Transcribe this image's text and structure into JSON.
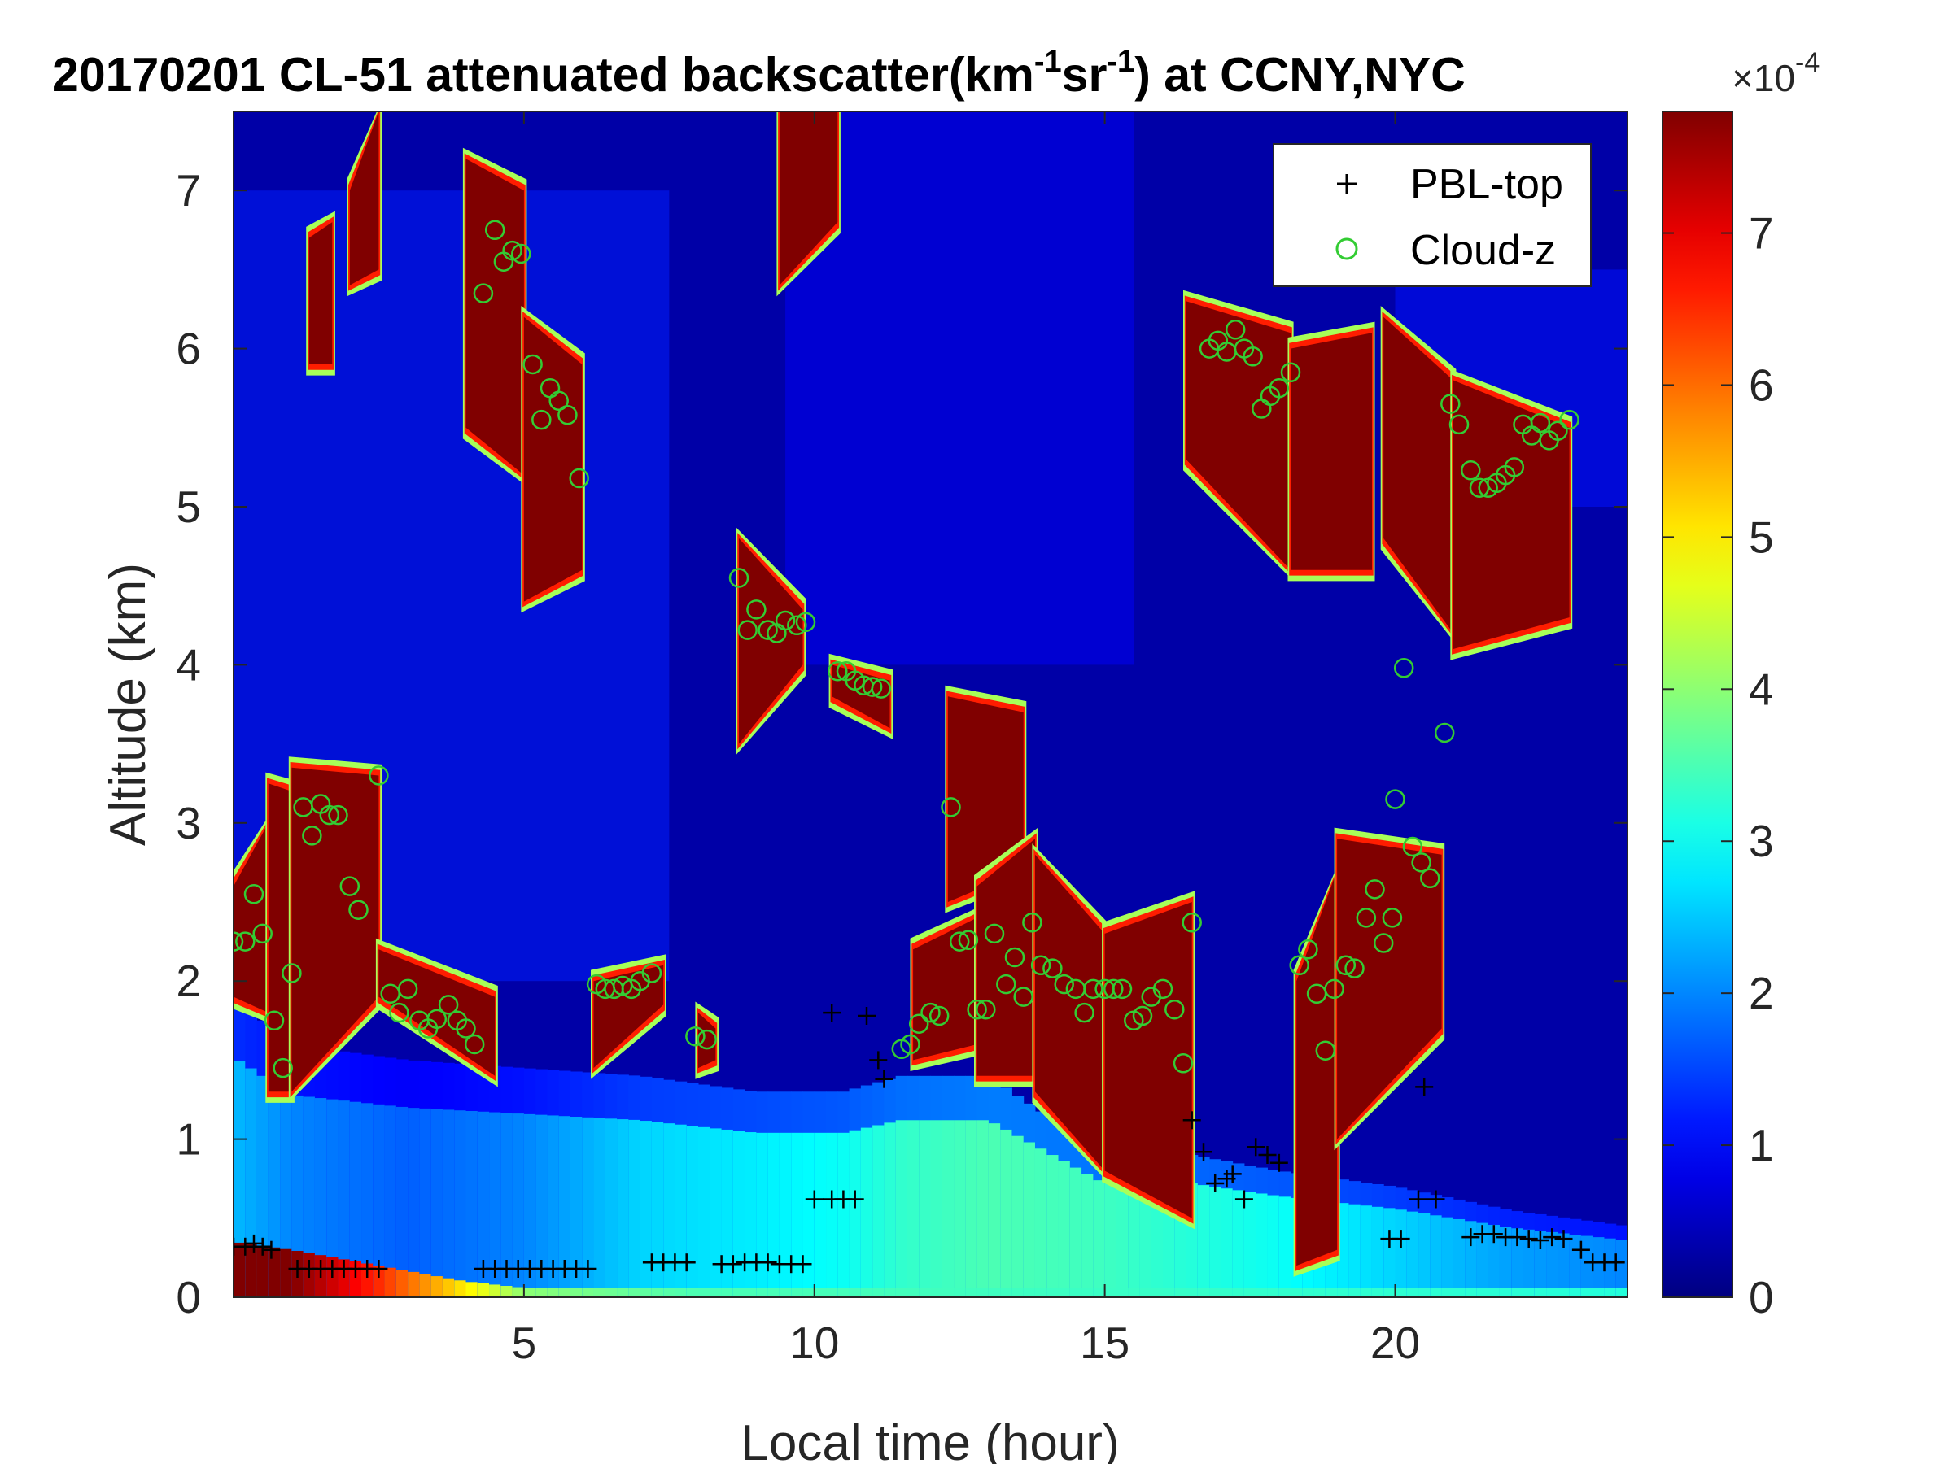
{
  "chart_data": {
    "type": "heatmap",
    "title": {
      "prefix": "20170201  CL-51 attenuated backscatter(km",
      "sup1": "-1",
      "mid": "sr",
      "sup2": "-1",
      "suffix": ") at CCNY,NYC"
    },
    "xlabel": "Local time (hour)",
    "ylabel": "Altitude (km)",
    "xlim": [
      0,
      24
    ],
    "ylim": [
      0,
      7.5
    ],
    "xticks": [
      5,
      10,
      15,
      20
    ],
    "yticks": [
      0,
      1,
      2,
      3,
      4,
      5,
      6,
      7
    ],
    "colorbar": {
      "colormap": "jet",
      "clim": [
        0,
        7.8
      ],
      "ticks": [
        0,
        1,
        2,
        3,
        4,
        5,
        6,
        7
      ],
      "exponent_base": "×10",
      "exponent_power": "-4"
    },
    "background_level": 0.3,
    "boundary_layer": [
      {
        "t": 0,
        "top": 1.9,
        "level": 2.4
      },
      {
        "t": 1,
        "top": 1.6,
        "level": 2.0
      },
      {
        "t": 3,
        "top": 1.5,
        "level": 1.7
      },
      {
        "t": 5,
        "top": 1.45,
        "level": 2.0
      },
      {
        "t": 7,
        "top": 1.4,
        "level": 2.6
      },
      {
        "t": 9,
        "top": 1.3,
        "level": 2.8
      },
      {
        "t": 10.5,
        "top": 1.3,
        "level": 3.0
      },
      {
        "t": 11.5,
        "top": 1.4,
        "level": 3.3
      },
      {
        "t": 13,
        "top": 1.4,
        "level": 3.5
      },
      {
        "t": 15,
        "top": 0.9,
        "level": 3.4
      },
      {
        "t": 16.5,
        "top": 0.9,
        "level": 3.2
      },
      {
        "t": 18,
        "top": 0.8,
        "level": 3.0
      },
      {
        "t": 20,
        "top": 0.7,
        "level": 2.6
      },
      {
        "t": 22,
        "top": 0.55,
        "level": 2.2
      },
      {
        "t": 24,
        "top": 0.45,
        "level": 2.0
      }
    ],
    "surface_layer": [
      {
        "t": 0,
        "top": 0.35,
        "level": 7.8
      },
      {
        "t": 1,
        "top": 0.3,
        "level": 7.8
      },
      {
        "t": 2.5,
        "top": 0.2,
        "level": 6.5
      },
      {
        "t": 4,
        "top": 0.1,
        "level": 5.0
      },
      {
        "t": 5,
        "top": 0.06,
        "level": 4.0
      },
      {
        "t": 8,
        "top": 0.06,
        "level": 3.5
      },
      {
        "t": 24,
        "top": 0.06,
        "level": 3.2
      }
    ],
    "aerosol_haze": [
      {
        "t0": 0,
        "t1": 7.5,
        "z0": 2.0,
        "z1": 7.0,
        "level": 1.2
      },
      {
        "t0": 9.5,
        "t1": 15.5,
        "z0": 4.0,
        "z1": 7.5,
        "level": 0.9
      },
      {
        "t0": 20,
        "t1": 24,
        "z0": 5.0,
        "z1": 6.5,
        "level": 1.1
      }
    ],
    "cloud_layers": [
      {
        "t0": 0.0,
        "t1": 0.6,
        "b0": 1.9,
        "b1": 1.8,
        "top0": 2.6,
        "top1": 3.0
      },
      {
        "t0": 0.6,
        "t1": 1.0,
        "b0": 1.3,
        "b1": 1.3,
        "top0": 3.25,
        "top1": 3.2
      },
      {
        "t0": 1.0,
        "t1": 2.5,
        "b0": 1.3,
        "b1": 1.9,
        "top0": 3.35,
        "top1": 3.3
      },
      {
        "t0": 2.5,
        "t1": 4.5,
        "b0": 1.9,
        "b1": 1.4,
        "top0": 2.2,
        "top1": 1.9
      },
      {
        "t0": 1.3,
        "t1": 1.7,
        "b0": 5.9,
        "b1": 5.9,
        "top0": 6.7,
        "top1": 6.8
      },
      {
        "t0": 2.0,
        "t1": 2.5,
        "b0": 6.4,
        "b1": 6.5,
        "top0": 7.0,
        "top1": 7.5
      },
      {
        "t0": 4.0,
        "t1": 5.0,
        "b0": 5.5,
        "b1": 5.2,
        "top0": 7.2,
        "top1": 7.0
      },
      {
        "t0": 5.0,
        "t1": 6.0,
        "b0": 4.4,
        "b1": 4.6,
        "top0": 6.2,
        "top1": 5.9
      },
      {
        "t0": 6.2,
        "t1": 7.4,
        "b0": 1.45,
        "b1": 1.85,
        "top0": 2.0,
        "top1": 2.1
      },
      {
        "t0": 8.0,
        "t1": 8.3,
        "b0": 1.45,
        "b1": 1.5,
        "top0": 1.8,
        "top1": 1.7
      },
      {
        "t0": 8.7,
        "t1": 9.8,
        "b0": 3.5,
        "b1": 4.0,
        "top0": 4.8,
        "top1": 4.35
      },
      {
        "t0": 9.4,
        "t1": 10.4,
        "b0": 6.4,
        "b1": 6.8,
        "top0": 7.5,
        "top1": 7.5
      },
      {
        "t0": 10.3,
        "t1": 11.3,
        "b0": 3.8,
        "b1": 3.6,
        "top0": 4.0,
        "top1": 3.9
      },
      {
        "t0": 11.7,
        "t1": 12.8,
        "b0": 1.5,
        "b1": 1.6,
        "top0": 2.2,
        "top1": 2.4
      },
      {
        "t0": 12.3,
        "t1": 13.6,
        "b0": 2.5,
        "b1": 2.7,
        "top0": 3.8,
        "top1": 3.7
      },
      {
        "t0": 12.8,
        "t1": 13.8,
        "b0": 1.4,
        "b1": 1.4,
        "top0": 2.6,
        "top1": 2.9
      },
      {
        "t0": 13.8,
        "t1": 15.0,
        "b0": 1.3,
        "b1": 0.8,
        "top0": 2.8,
        "top1": 2.3
      },
      {
        "t0": 15.0,
        "t1": 16.5,
        "b0": 0.8,
        "b1": 0.5,
        "top0": 2.3,
        "top1": 2.5
      },
      {
        "t0": 16.4,
        "t1": 18.2,
        "b0": 5.3,
        "b1": 4.6,
        "top0": 6.3,
        "top1": 6.1
      },
      {
        "t0": 18.2,
        "t1": 19.6,
        "b0": 4.6,
        "b1": 4.6,
        "top0": 6.0,
        "top1": 6.1
      },
      {
        "t0": 19.8,
        "t1": 21.0,
        "b0": 4.8,
        "b1": 4.2,
        "top0": 6.2,
        "top1": 5.8
      },
      {
        "t0": 21.0,
        "t1": 23.0,
        "b0": 4.1,
        "b1": 4.3,
        "top0": 5.8,
        "top1": 5.5
      },
      {
        "t0": 18.3,
        "t1": 19.0,
        "b0": 0.2,
        "b1": 0.3,
        "top0": 2.0,
        "top1": 2.7
      },
      {
        "t0": 19.0,
        "t1": 20.8,
        "b0": 1.0,
        "b1": 1.7,
        "top0": 2.9,
        "top1": 2.8
      }
    ],
    "series": [
      {
        "name": "PBL-top",
        "marker": "+",
        "color": "#000000",
        "points": [
          [
            0.0,
            0.32
          ],
          [
            0.2,
            0.32
          ],
          [
            0.35,
            0.34
          ],
          [
            0.5,
            0.32
          ],
          [
            0.65,
            0.3
          ],
          [
            1.1,
            0.18
          ],
          [
            1.3,
            0.18
          ],
          [
            1.5,
            0.18
          ],
          [
            1.7,
            0.18
          ],
          [
            1.9,
            0.18
          ],
          [
            2.1,
            0.18
          ],
          [
            2.3,
            0.18
          ],
          [
            2.5,
            0.18
          ],
          [
            4.3,
            0.18
          ],
          [
            4.5,
            0.18
          ],
          [
            4.7,
            0.18
          ],
          [
            4.9,
            0.18
          ],
          [
            5.1,
            0.18
          ],
          [
            5.3,
            0.18
          ],
          [
            5.5,
            0.18
          ],
          [
            5.7,
            0.18
          ],
          [
            5.9,
            0.18
          ],
          [
            6.1,
            0.18
          ],
          [
            7.2,
            0.22
          ],
          [
            7.4,
            0.22
          ],
          [
            7.6,
            0.22
          ],
          [
            7.8,
            0.22
          ],
          [
            8.4,
            0.21
          ],
          [
            8.6,
            0.21
          ],
          [
            8.8,
            0.22
          ],
          [
            9.0,
            0.22
          ],
          [
            9.2,
            0.22
          ],
          [
            9.4,
            0.21
          ],
          [
            9.6,
            0.21
          ],
          [
            9.8,
            0.21
          ],
          [
            10.0,
            0.62
          ],
          [
            10.3,
            0.62
          ],
          [
            10.5,
            0.62
          ],
          [
            10.7,
            0.62
          ],
          [
            10.3,
            1.8
          ],
          [
            10.9,
            1.78
          ],
          [
            11.1,
            1.5
          ],
          [
            11.2,
            1.38
          ],
          [
            16.5,
            1.12
          ],
          [
            16.7,
            0.92
          ],
          [
            16.9,
            0.72
          ],
          [
            17.1,
            0.75
          ],
          [
            17.2,
            0.78
          ],
          [
            17.4,
            0.62
          ],
          [
            17.6,
            0.95
          ],
          [
            17.8,
            0.9
          ],
          [
            18.0,
            0.85
          ],
          [
            19.9,
            0.37
          ],
          [
            20.1,
            0.37
          ],
          [
            20.4,
            0.62
          ],
          [
            20.7,
            0.62
          ],
          [
            20.5,
            1.33
          ],
          [
            21.3,
            0.38
          ],
          [
            21.5,
            0.4
          ],
          [
            21.7,
            0.4
          ],
          [
            21.9,
            0.38
          ],
          [
            22.1,
            0.38
          ],
          [
            22.3,
            0.37
          ],
          [
            22.5,
            0.36
          ],
          [
            22.7,
            0.38
          ],
          [
            22.9,
            0.37
          ],
          [
            23.2,
            0.3
          ],
          [
            23.4,
            0.22
          ],
          [
            23.6,
            0.22
          ],
          [
            23.8,
            0.22
          ]
        ]
      },
      {
        "name": "Cloud-z",
        "marker": "o",
        "color": "#33cc33",
        "points": [
          [
            0.0,
            2.25
          ],
          [
            0.2,
            2.25
          ],
          [
            0.35,
            2.55
          ],
          [
            0.5,
            2.3
          ],
          [
            0.7,
            1.75
          ],
          [
            0.85,
            1.45
          ],
          [
            1.0,
            2.05
          ],
          [
            1.2,
            3.1
          ],
          [
            1.35,
            2.92
          ],
          [
            1.5,
            3.12
          ],
          [
            1.65,
            3.05
          ],
          [
            1.8,
            3.05
          ],
          [
            2.0,
            2.6
          ],
          [
            2.15,
            2.45
          ],
          [
            2.5,
            3.3
          ],
          [
            2.7,
            1.92
          ],
          [
            2.85,
            1.8
          ],
          [
            3.0,
            1.95
          ],
          [
            3.2,
            1.75
          ],
          [
            3.35,
            1.7
          ],
          [
            3.5,
            1.76
          ],
          [
            3.7,
            1.85
          ],
          [
            3.85,
            1.75
          ],
          [
            4.0,
            1.7
          ],
          [
            4.15,
            1.6
          ],
          [
            4.3,
            6.35
          ],
          [
            4.5,
            6.75
          ],
          [
            4.65,
            6.55
          ],
          [
            4.8,
            6.62
          ],
          [
            4.95,
            6.6
          ],
          [
            5.15,
            5.9
          ],
          [
            5.3,
            5.55
          ],
          [
            5.45,
            5.75
          ],
          [
            5.6,
            5.67
          ],
          [
            5.75,
            5.58
          ],
          [
            5.95,
            5.18
          ],
          [
            6.25,
            1.98
          ],
          [
            6.4,
            1.95
          ],
          [
            6.55,
            1.95
          ],
          [
            6.7,
            1.97
          ],
          [
            6.85,
            1.95
          ],
          [
            7.0,
            2.0
          ],
          [
            7.2,
            2.05
          ],
          [
            7.95,
            1.65
          ],
          [
            8.15,
            1.63
          ],
          [
            8.7,
            4.55
          ],
          [
            8.85,
            4.22
          ],
          [
            9.0,
            4.35
          ],
          [
            9.2,
            4.22
          ],
          [
            9.35,
            4.2
          ],
          [
            9.5,
            4.28
          ],
          [
            9.7,
            4.25
          ],
          [
            9.85,
            4.27
          ],
          [
            10.4,
            3.96
          ],
          [
            10.55,
            3.96
          ],
          [
            10.7,
            3.9
          ],
          [
            10.85,
            3.87
          ],
          [
            11.0,
            3.86
          ],
          [
            11.15,
            3.85
          ],
          [
            11.5,
            1.57
          ],
          [
            11.65,
            1.6
          ],
          [
            11.8,
            1.73
          ],
          [
            12.0,
            1.8
          ],
          [
            12.15,
            1.78
          ],
          [
            12.35,
            3.1
          ],
          [
            12.5,
            2.25
          ],
          [
            12.65,
            2.26
          ],
          [
            12.8,
            1.82
          ],
          [
            12.95,
            1.82
          ],
          [
            13.1,
            2.3
          ],
          [
            13.3,
            1.98
          ],
          [
            13.45,
            2.15
          ],
          [
            13.6,
            1.9
          ],
          [
            13.75,
            2.37
          ],
          [
            13.9,
            2.1
          ],
          [
            14.1,
            2.08
          ],
          [
            14.3,
            1.98
          ],
          [
            14.5,
            1.95
          ],
          [
            14.65,
            1.8
          ],
          [
            14.8,
            1.95
          ],
          [
            15.0,
            1.95
          ],
          [
            15.15,
            1.95
          ],
          [
            15.3,
            1.95
          ],
          [
            15.5,
            1.75
          ],
          [
            15.65,
            1.78
          ],
          [
            15.8,
            1.9
          ],
          [
            16.0,
            1.95
          ],
          [
            16.2,
            1.82
          ],
          [
            16.35,
            1.48
          ],
          [
            16.5,
            2.37
          ],
          [
            16.8,
            6.0
          ],
          [
            16.95,
            6.05
          ],
          [
            17.1,
            5.98
          ],
          [
            17.25,
            6.12
          ],
          [
            17.4,
            6.0
          ],
          [
            17.55,
            5.95
          ],
          [
            17.7,
            5.62
          ],
          [
            17.85,
            5.7
          ],
          [
            18.0,
            5.75
          ],
          [
            18.2,
            5.85
          ],
          [
            18.35,
            2.1
          ],
          [
            18.5,
            2.2
          ],
          [
            18.65,
            1.92
          ],
          [
            18.8,
            1.56
          ],
          [
            18.95,
            1.95
          ],
          [
            19.15,
            2.1
          ],
          [
            19.3,
            2.08
          ],
          [
            19.5,
            2.4
          ],
          [
            19.65,
            2.58
          ],
          [
            19.8,
            2.24
          ],
          [
            19.95,
            2.4
          ],
          [
            20.0,
            3.15
          ],
          [
            20.15,
            3.98
          ],
          [
            20.3,
            2.85
          ],
          [
            20.45,
            2.75
          ],
          [
            20.6,
            2.65
          ],
          [
            20.85,
            3.57
          ],
          [
            20.95,
            5.65
          ],
          [
            21.1,
            5.52
          ],
          [
            21.3,
            5.23
          ],
          [
            21.45,
            5.12
          ],
          [
            21.6,
            5.12
          ],
          [
            21.75,
            5.15
          ],
          [
            21.9,
            5.2
          ],
          [
            22.05,
            5.25
          ],
          [
            22.2,
            5.52
          ],
          [
            22.35,
            5.45
          ],
          [
            22.5,
            5.53
          ],
          [
            22.65,
            5.42
          ],
          [
            22.8,
            5.48
          ],
          [
            23.0,
            5.55
          ]
        ]
      }
    ]
  }
}
